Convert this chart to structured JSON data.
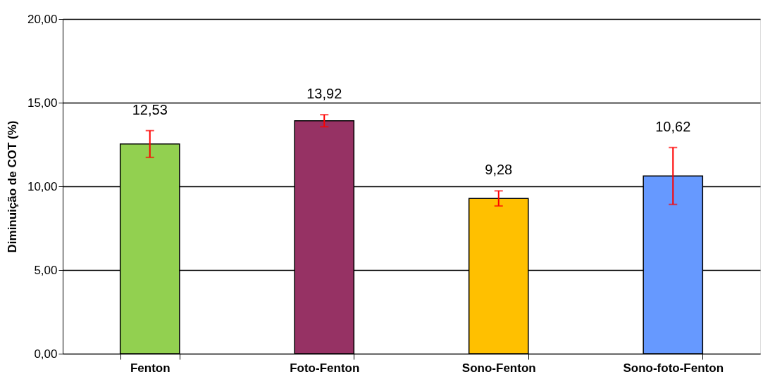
{
  "chart_data": {
    "type": "bar",
    "ylabel": "Diminuição de COT (%)",
    "categories": [
      "Fenton",
      "Foto-Fenton",
      "Sono-Fenton",
      "Sono-foto-Fenton"
    ],
    "values": [
      12.53,
      13.92,
      9.28,
      10.62
    ],
    "colors": [
      "#92d050",
      "#963264",
      "#ffc000",
      "#6699ff"
    ],
    "errors": [
      0.8,
      0.36,
      0.45,
      1.7
    ],
    "value_labels": [
      "12,53",
      "13,92",
      "9,28",
      "10,62"
    ],
    "ylim": [
      0,
      20
    ],
    "yticks": [
      {
        "value": 0,
        "label": "0,00"
      },
      {
        "value": 5,
        "label": "5,00"
      },
      {
        "value": 10,
        "label": "10,00"
      },
      {
        "value": 15,
        "label": "15,00"
      },
      {
        "value": 20,
        "label": "20,00"
      }
    ],
    "grid": "y",
    "legend": false
  }
}
